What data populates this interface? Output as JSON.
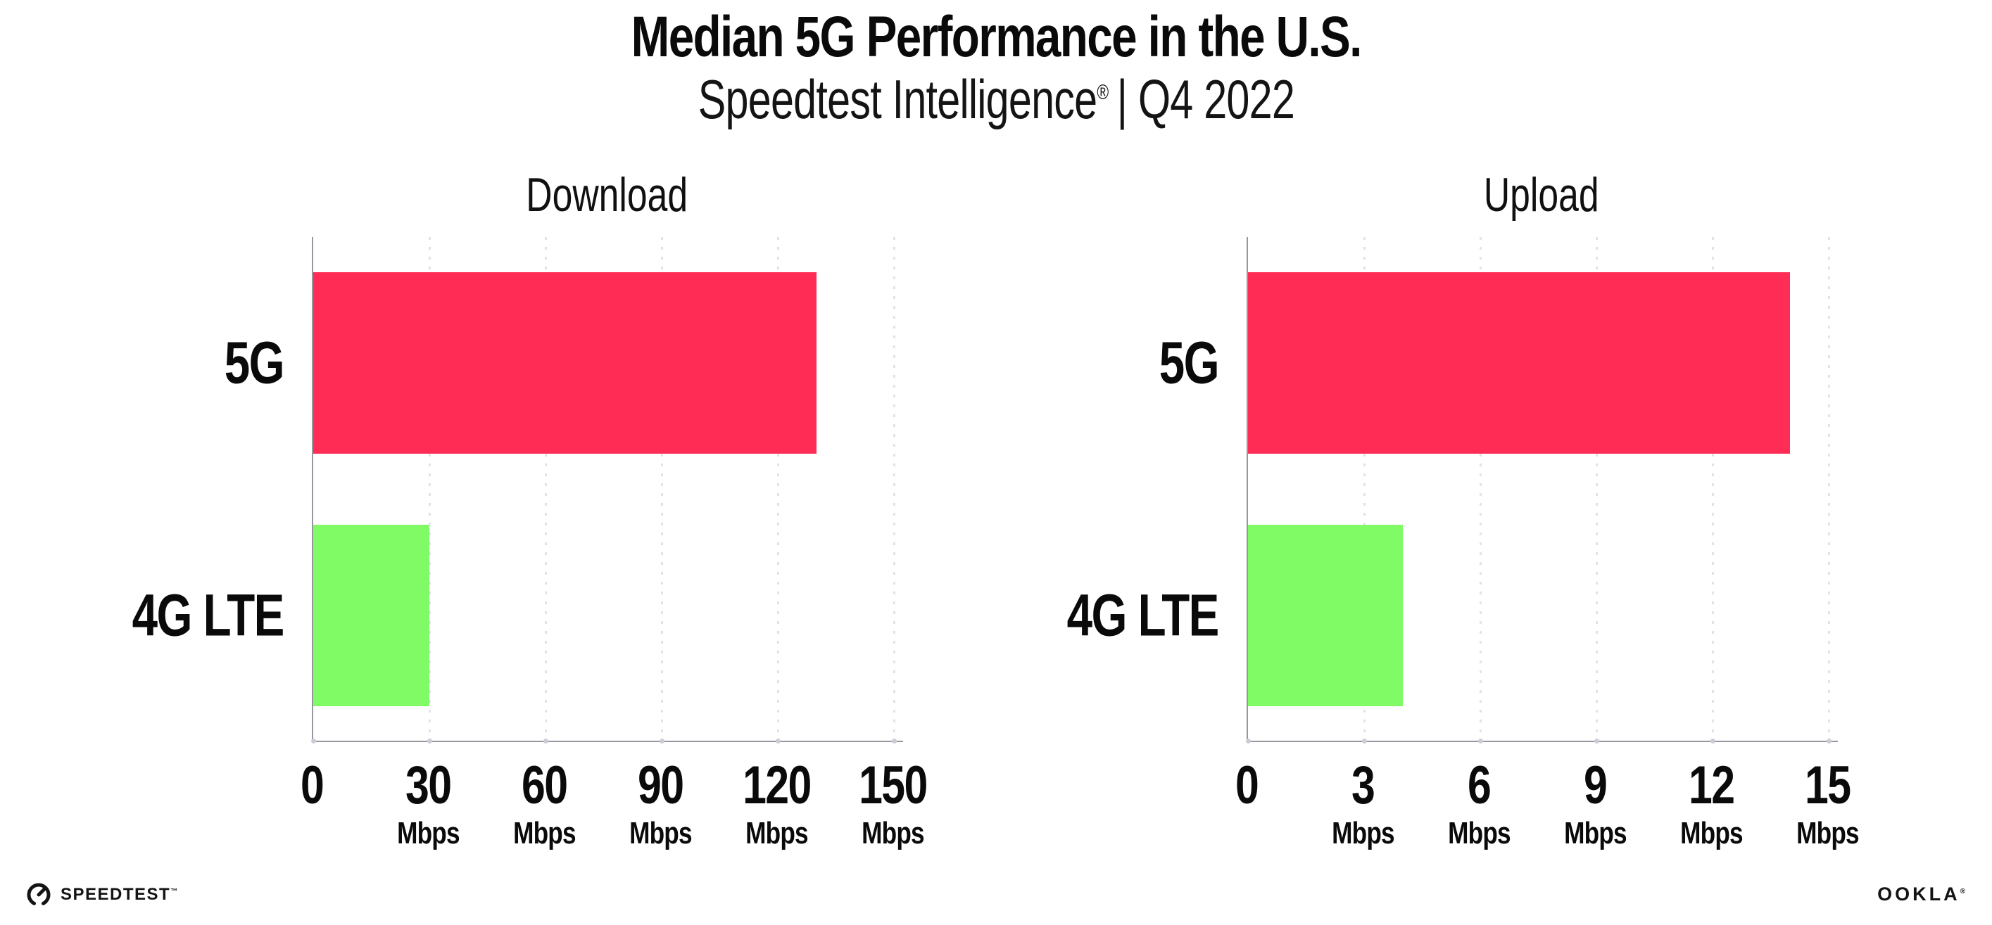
{
  "header": {
    "title": "Median 5G Performance in the U.S.",
    "subtitle_brand": "Speedtest Intelligence",
    "subtitle_reg": "®",
    "subtitle_rest": "| Q4 2022"
  },
  "footer": {
    "speedtest_label": "SPEEDTEST",
    "speedtest_tm": "™",
    "ookla_label": "OOKLA",
    "ookla_reg": "®"
  },
  "colors": {
    "bar_5g": "#ff2d55",
    "bar_4g_lte": "#80fb66",
    "axis_line": "#96969e",
    "gridline": "#e2e2ea",
    "text": "#0c0c0c"
  },
  "chart_data": [
    {
      "type": "bar",
      "orientation": "horizontal",
      "title": "Download",
      "categories": [
        "5G",
        "4G LTE"
      ],
      "values": [
        130,
        30
      ],
      "unit": "Mbps",
      "xlim": [
        0,
        150
      ],
      "xticks": [
        0,
        30,
        60,
        90,
        120,
        150
      ],
      "bar_colors": [
        "#ff2d55",
        "#80fb66"
      ],
      "grid": "vertical-dotted",
      "legend": "none"
    },
    {
      "type": "bar",
      "orientation": "horizontal",
      "title": "Upload",
      "categories": [
        "5G",
        "4G LTE"
      ],
      "values": [
        14,
        4
      ],
      "unit": "Mbps",
      "xlim": [
        0,
        15
      ],
      "xticks": [
        0,
        3,
        6,
        9,
        12,
        15
      ],
      "bar_colors": [
        "#ff2d55",
        "#80fb66"
      ],
      "grid": "vertical-dotted",
      "legend": "none"
    }
  ]
}
